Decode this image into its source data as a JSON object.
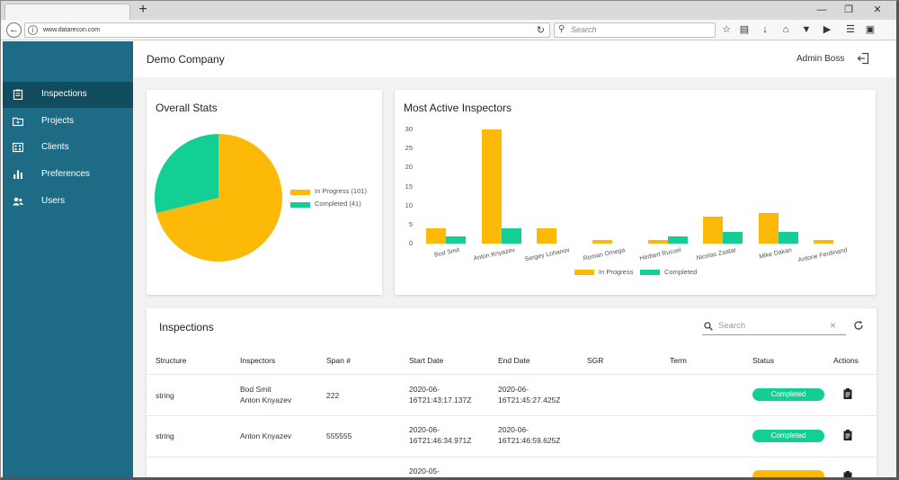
{
  "browser": {
    "new_tab": "+",
    "url": "www.datarecon.com",
    "search_placeholder": "Search",
    "window_controls": [
      "—",
      "❐",
      "✕"
    ]
  },
  "sidebar": {
    "items": [
      {
        "label": "Inspections",
        "icon": "clipboard-icon",
        "active": true
      },
      {
        "label": "Projects",
        "icon": "folder-icon",
        "active": false
      },
      {
        "label": "Clients",
        "icon": "building-icon",
        "active": false
      },
      {
        "label": "Preferences",
        "icon": "bar-chart-icon",
        "active": false
      },
      {
        "label": "Users",
        "icon": "users-icon",
        "active": false
      }
    ]
  },
  "header": {
    "company": "Demo Company",
    "user": "Admin Boss"
  },
  "overall_stats": {
    "title": "Overall Stats"
  },
  "most_active": {
    "title": "Most Active Inspectors"
  },
  "chart_data": [
    {
      "type": "pie",
      "title": "Overall Stats",
      "labels": [
        "In Progress (101)",
        "Completed (41)"
      ],
      "values": [
        101,
        41
      ],
      "colors": [
        "#fdb907",
        "#14cf95"
      ],
      "legend": "right"
    },
    {
      "type": "bar",
      "title": "Most Active Inspectors",
      "categories": [
        "Bod Smit",
        "Anton Knyazev",
        "Sergey Lohanov",
        "Roman Omega",
        "Herbert Russel",
        "Nicolas Zaatar",
        "Mike Dakan",
        "Antone Ferdinand"
      ],
      "series": [
        {
          "name": "In Progress",
          "values": [
            4,
            30,
            4,
            1,
            1,
            7,
            8,
            1
          ],
          "color": "#fdb907"
        },
        {
          "name": "Completed",
          "values": [
            2,
            4,
            0,
            0,
            2,
            3,
            3,
            0
          ],
          "color": "#14cf95"
        }
      ],
      "ylim": [
        0,
        30
      ],
      "yticks": [
        "0",
        "5",
        "10",
        "15",
        "20",
        "25",
        "30"
      ],
      "legend": "bottom"
    }
  ],
  "inspections": {
    "title": "Inspections",
    "search_placeholder": "Search",
    "columns": [
      "Structure",
      "Inspectors",
      "Span #",
      "Start Date",
      "End Date",
      "SGR",
      "Term",
      "Status",
      "Actions"
    ],
    "rows": [
      {
        "structure": "string",
        "inspectors": [
          "Bod Smit",
          "Anton Knyazev"
        ],
        "span": "222",
        "start": [
          "2020-06-",
          "16T21:43:17.137Z"
        ],
        "end": [
          "2020-06-",
          "16T21:45:27.425Z"
        ],
        "sgr": "",
        "term": "",
        "status": "Completed",
        "status_color": "#14cf95"
      },
      {
        "structure": "string",
        "inspectors": [
          "Anton Knyazev"
        ],
        "span": "555555",
        "start": [
          "2020-06-",
          "16T21:46:34.971Z"
        ],
        "end": [
          "2020-06-",
          "16T21:46:59.625Z"
        ],
        "sgr": "",
        "term": "",
        "status": "Completed",
        "status_color": "#14cf95"
      },
      {
        "structure": "",
        "inspectors": [
          ""
        ],
        "span": "",
        "start": [
          "2020-05-",
          ""
        ],
        "end": [
          "",
          ""
        ],
        "sgr": "",
        "term": "",
        "status": "",
        "status_color": "#fdb907"
      }
    ]
  }
}
